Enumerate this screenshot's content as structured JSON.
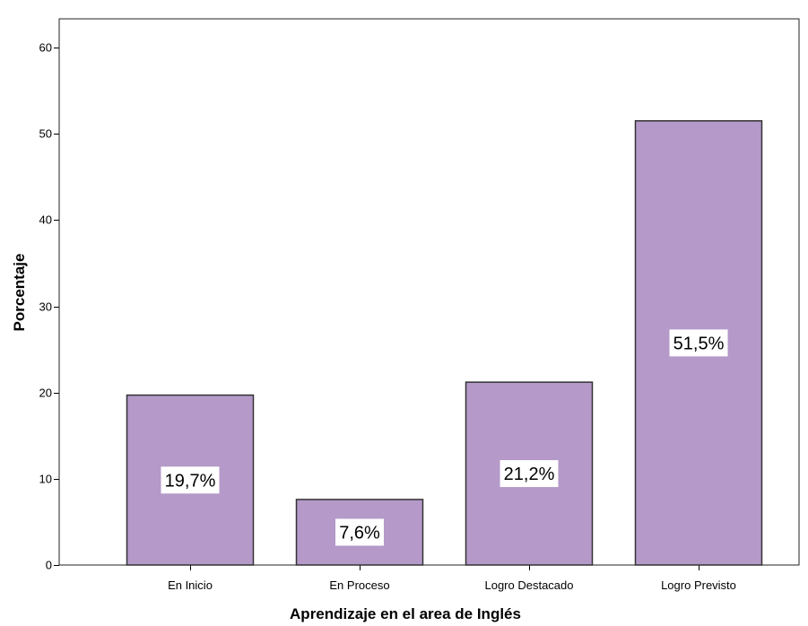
{
  "chart_data": {
    "type": "bar",
    "categories": [
      "En Inicio",
      "En Proceso",
      "Logro Destacado",
      "Logro Previsto"
    ],
    "values": [
      19.7,
      7.6,
      21.2,
      51.5
    ],
    "data_labels": [
      "19,7%",
      "7,6%",
      "21,2%",
      "51,5%"
    ],
    "title": "",
    "xlabel": "Aprendizaje en el area de Inglés",
    "ylabel": "Porcentaje",
    "ylim": [
      0,
      60
    ],
    "yticks": [
      0,
      10,
      20,
      30,
      40,
      50,
      60
    ],
    "grid": false,
    "legend": "none",
    "colors": {
      "bar_fill": "#b499c9",
      "bar_stroke": "#333333",
      "axis": "#000000",
      "label_box": "#ffffff"
    }
  }
}
